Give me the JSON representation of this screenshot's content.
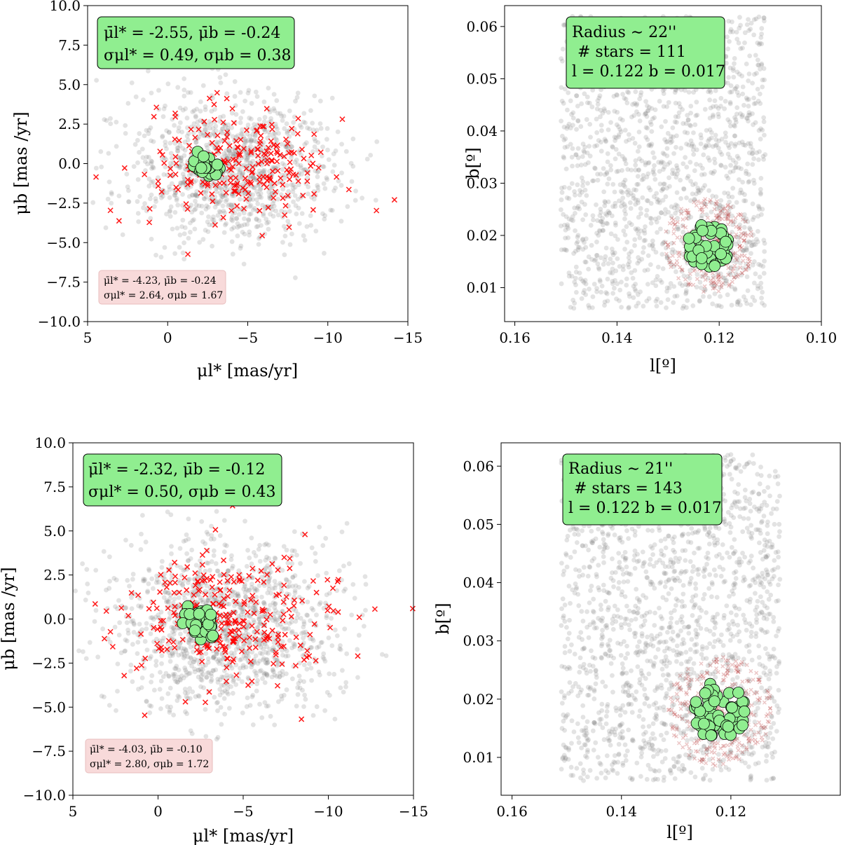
{
  "chart_data": [
    {
      "id": "pm-top",
      "type": "scatter",
      "title": "",
      "xlabel": "μl* [mas/yr]",
      "ylabel": "μb [mas /yr]",
      "xlim": [
        5,
        -15
      ],
      "ylim": [
        -10,
        10
      ],
      "xticks": [
        5,
        0,
        -5,
        -10,
        -15
      ],
      "xtick_labels": [
        "5",
        "0",
        "−5",
        "−10",
        "−15"
      ],
      "yticks": [
        10,
        7.5,
        5,
        2.5,
        0,
        -2.5,
        -5,
        -7.5,
        -10
      ],
      "ytick_labels": [
        "10.0",
        "7.5",
        "5.0",
        "2.5",
        "0.0",
        "−2.5",
        "−5.0",
        "−7.5",
        "−10.0"
      ],
      "series": [
        {
          "name": "all stars",
          "marker": "circle",
          "color": "#808080",
          "count": 1100,
          "center": [
            -4.2,
            -0.3
          ],
          "spread": [
            3.2,
            2.3
          ]
        },
        {
          "name": "field comparison",
          "marker": "x",
          "color": "#ff0000",
          "count": 230,
          "center": [
            -4.23,
            -0.24
          ],
          "spread": [
            2.64,
            1.67
          ]
        },
        {
          "name": "cluster members",
          "marker": "circle",
          "color": "#90ee90",
          "count": 30,
          "center": [
            -2.55,
            -0.24
          ],
          "spread": [
            0.49,
            0.38
          ]
        }
      ],
      "annotations": {
        "members": {
          "line1": "μ̄l* = -2.55, μ̄b = -0.24",
          "line2": "σμl* = 0.49, σμb = 0.38",
          "color": "#90ee90"
        },
        "field": {
          "line1": "μ̄l* = -4.23, μ̄b = -0.24",
          "line2": "σμl* = 2.64, σμb = 1.67",
          "color": "#f8d7d7"
        }
      }
    },
    {
      "id": "pos-top",
      "type": "scatter",
      "title": "",
      "xlabel": "l[º]",
      "ylabel": "b[º]",
      "xlim": [
        0.162,
        0.1
      ],
      "ylim": [
        0.0035,
        0.064
      ],
      "xticks": [
        0.16,
        0.14,
        0.12,
        0.1
      ],
      "xtick_labels": [
        "0.16",
        "0.14",
        "0.12",
        "0.10"
      ],
      "yticks": [
        0.01,
        0.02,
        0.03,
        0.04,
        0.05,
        0.06
      ],
      "ytick_labels": [
        "0.01",
        "0.02",
        "0.03",
        "0.04",
        "0.05",
        "0.06"
      ],
      "series": [
        {
          "name": "all stars",
          "marker": "circle",
          "color": "#808080",
          "count": 1500,
          "xrange": [
            0.111,
            0.151
          ],
          "yrange": [
            0.006,
            0.062
          ]
        },
        {
          "name": "comparison ring",
          "marker": "x",
          "color": "#b22222",
          "count": 280,
          "center": [
            0.122,
            0.018
          ],
          "radius": 0.009
        },
        {
          "name": "cluster members",
          "marker": "circle",
          "color": "#90ee90",
          "count": 45,
          "center": [
            0.122,
            0.018
          ],
          "radius": 0.0045
        }
      ],
      "annotations": {
        "info": {
          "line1": "Radius ∼ 22''",
          "line2": "# stars = 111",
          "line3": "l = 0.122 b = 0.017",
          "color": "#90ee90"
        }
      }
    },
    {
      "id": "pm-bottom",
      "type": "scatter",
      "title": "",
      "xlabel": "μl* [mas/yr]",
      "ylabel": "μb [mas /yr]",
      "xlim": [
        5,
        -15
      ],
      "ylim": [
        -10,
        10
      ],
      "xticks": [
        5,
        0,
        -5,
        -10,
        -15
      ],
      "xtick_labels": [
        "5",
        "0",
        "−5",
        "−10",
        "−15"
      ],
      "yticks": [
        10,
        7.5,
        5,
        2.5,
        0,
        -2.5,
        -5,
        -7.5,
        -10
      ],
      "ytick_labels": [
        "10.0",
        "7.5",
        "5.0",
        "2.5",
        "0.0",
        "−2.5",
        "−5.0",
        "−7.5",
        "−10.0"
      ],
      "series": [
        {
          "name": "all stars",
          "marker": "circle",
          "color": "#808080",
          "count": 1300,
          "center": [
            -4.0,
            -0.3
          ],
          "spread": [
            3.3,
            2.4
          ]
        },
        {
          "name": "field comparison",
          "marker": "x",
          "color": "#ff0000",
          "count": 280,
          "center": [
            -4.03,
            -0.1
          ],
          "spread": [
            2.8,
            1.72
          ]
        },
        {
          "name": "cluster members",
          "marker": "circle",
          "color": "#90ee90",
          "count": 45,
          "center": [
            -2.32,
            -0.12
          ],
          "spread": [
            0.5,
            0.43
          ]
        }
      ],
      "annotations": {
        "members": {
          "line1": "μ̄l* = -2.32, μ̄b = -0.12",
          "line2": "σμl* = 0.50, σμb = 0.43",
          "color": "#90ee90"
        },
        "field": {
          "line1": "μ̄l* = -4.03, μ̄b = -0.10",
          "line2": "σμl* = 2.80, σμb = 1.72",
          "color": "#f8d7d7"
        }
      }
    },
    {
      "id": "pos-bottom",
      "type": "scatter",
      "title": "",
      "xlabel": "l[º]",
      "ylabel": "b[º]",
      "xlim": [
        0.162,
        0.1
      ],
      "ylim": [
        0.0035,
        0.064
      ],
      "xticks": [
        0.16,
        0.14,
        0.12
      ],
      "xtick_labels": [
        "0.16",
        "0.14",
        "0.12"
      ],
      "yticks": [
        0.01,
        0.02,
        0.03,
        0.04,
        0.05,
        0.06
      ],
      "ytick_labels": [
        "0.01",
        "0.02",
        "0.03",
        "0.04",
        "0.05",
        "0.06"
      ],
      "series": [
        {
          "name": "all stars",
          "marker": "circle",
          "color": "#808080",
          "count": 1700,
          "xrange": [
            0.111,
            0.151
          ],
          "yrange": [
            0.006,
            0.062
          ]
        },
        {
          "name": "comparison ring",
          "marker": "x",
          "color": "#b22222",
          "count": 320,
          "center": [
            0.122,
            0.018
          ],
          "radius": 0.0095
        },
        {
          "name": "cluster members",
          "marker": "circle",
          "color": "#90ee90",
          "count": 60,
          "center": [
            0.122,
            0.018
          ],
          "radius": 0.005
        }
      ],
      "annotations": {
        "info": {
          "line1": "Radius ∼ 21''",
          "line2": "# stars = 143",
          "line3": "l = 0.122 b = 0.017",
          "color": "#90ee90"
        }
      }
    }
  ]
}
